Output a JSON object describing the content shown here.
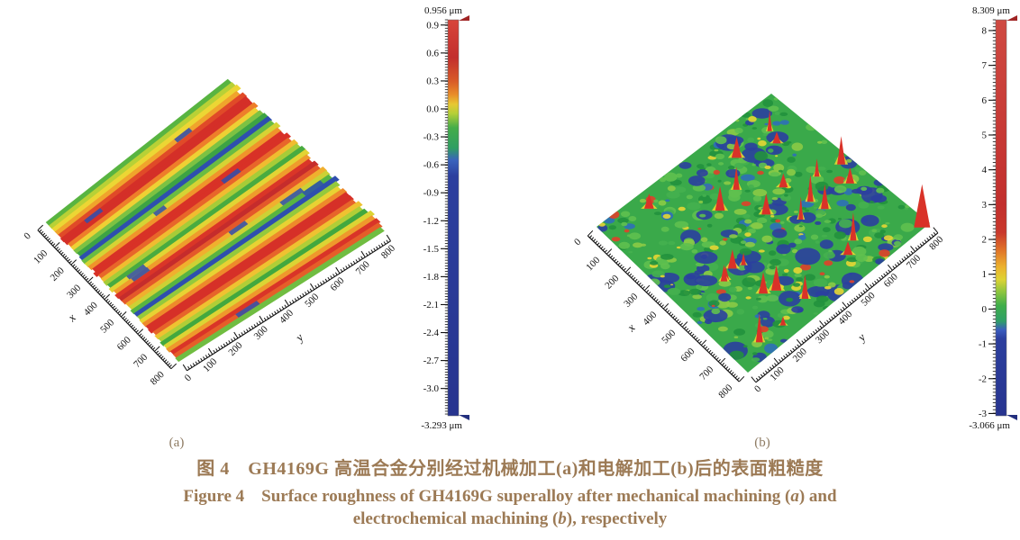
{
  "figure": {
    "panel_labels": {
      "a": "(a)",
      "b": "(b)"
    },
    "caption": {
      "zh": "图 4　GH4169G 高温合金分别经过机械加工(a)和电解加工(b)后的表面粗糙度",
      "en_line1_pre": "Figure 4　Surface roughness of GH4169G superalloy after mechanical machining (",
      "en_line1_italic": "a",
      "en_line1_post": ") and",
      "en_line2_pre": "electrochemical machining (",
      "en_line2_italic": "b",
      "en_line2_post": "), respectively",
      "text_color": "#9c7a55",
      "panel_label_color": "#8e7b63"
    }
  },
  "chart_data": [
    {
      "id": "a",
      "type": "heatmap",
      "subtype": "3d-surface-topography",
      "process": "mechanical machining",
      "xlabel": "x",
      "ylabel": "y",
      "x_ticks": [
        0,
        100,
        200,
        300,
        400,
        500,
        600,
        700,
        800
      ],
      "y_ticks": [
        0,
        100,
        200,
        300,
        400,
        500,
        600,
        700,
        800
      ],
      "axis_max": 800,
      "z_unit": "μm",
      "z_max": 0.956,
      "z_min": -3.293,
      "z_max_label": "0.956 μm",
      "z_min_label": "-3.293 μm",
      "colorbar_major_ticks": [
        0.9,
        0.6,
        0.3,
        0.0,
        -0.3,
        -0.6,
        -0.9,
        -1.2,
        -1.5,
        -1.8,
        -2.1,
        -2.4,
        -2.7,
        -3.0
      ],
      "colorbar_tick_decimals": 1,
      "colorbar_minor_step": 0.03,
      "colorbar_gradient": [
        [
          0.956,
          "#d8453a"
        ],
        [
          0.55,
          "#c22f2d"
        ],
        [
          0.3,
          "#d85a28"
        ],
        [
          0.15,
          "#e98e29"
        ],
        [
          0.05,
          "#e7c832"
        ],
        [
          -0.05,
          "#b5cf37"
        ],
        [
          -0.2,
          "#45ad49"
        ],
        [
          -0.42,
          "#2f9e62"
        ],
        [
          -0.55,
          "#3a63bd"
        ],
        [
          -0.72,
          "#2c3f9e"
        ],
        [
          -3.293,
          "#27348f"
        ]
      ],
      "texture": "parallel machining groove stripes running along y",
      "stripe_colors": [
        "#58b441",
        "#b8d136",
        "#ecd634",
        "#f0a42c",
        "#e04a28",
        "#d42f28",
        "#d42f28",
        "#ee7e2a",
        "#eed034",
        "#7cc243",
        "#3da344",
        "#2e4fae",
        "#6abc42",
        "#d6d334",
        "#f0942b",
        "#d83127",
        "#d83127",
        "#e8662a",
        "#f0bc30",
        "#a6cc38",
        "#48ab40",
        "#e2d434",
        "#ef9c2c",
        "#da3528",
        "#c52c2c",
        "#e4582a",
        "#f0b02e",
        "#ccd135",
        "#58b441",
        "#2e4fae",
        "#94c93c",
        "#e8d233",
        "#ee8a2b",
        "#d63028",
        "#d63028",
        "#e7642a",
        "#efc231",
        "#b0ce37",
        "#42a83f",
        "#dcd434",
        "#ef982c",
        "#d93428",
        "#e55e29",
        "#70bd41"
      ],
      "fleck_color": "#2e4fae",
      "fleck_count": 10,
      "rng_seed": 11
    },
    {
      "id": "b",
      "type": "heatmap",
      "subtype": "3d-surface-topography",
      "process": "electrochemical machining",
      "xlabel": "x",
      "ylabel": "y",
      "x_ticks": [
        0,
        100,
        200,
        300,
        400,
        500,
        600,
        700,
        800
      ],
      "y_ticks": [
        0,
        100,
        200,
        300,
        400,
        500,
        600,
        700,
        800
      ],
      "axis_max": 800,
      "z_unit": "μm",
      "z_max": 8.309,
      "z_min": -3.066,
      "z_max_label": "8.309 μm",
      "z_min_label": "-3.066 μm",
      "colorbar_major_ticks": [
        8,
        7,
        6,
        5,
        4,
        3,
        2,
        1,
        0,
        -1,
        -2,
        -3
      ],
      "colorbar_tick_decimals": 0,
      "colorbar_minor_step": 0.1,
      "colorbar_gradient": [
        [
          8.309,
          "#cf4a42"
        ],
        [
          3.0,
          "#c22f2d"
        ],
        [
          2.2,
          "#c9382c"
        ],
        [
          1.7,
          "#e07328"
        ],
        [
          1.2,
          "#ecb32e"
        ],
        [
          0.85,
          "#ded334"
        ],
        [
          0.5,
          "#8ec63e"
        ],
        [
          0.1,
          "#3fae4a"
        ],
        [
          -0.35,
          "#2f9e68"
        ],
        [
          -0.6,
          "#3a5cbe"
        ],
        [
          -0.85,
          "#2c3f9e"
        ],
        [
          -3.066,
          "#27348f"
        ]
      ],
      "texture": "mottled etched grains with pits and sharp peaks",
      "base_color": "#3aa94a",
      "blob_palette": [
        [
          "#2b3f9f",
          0.13
        ],
        [
          "#22913d",
          0.18
        ],
        [
          "#5fc04f",
          0.2
        ],
        [
          "#8bca46",
          0.12
        ],
        [
          "#e6d634",
          0.1
        ],
        [
          "#45b04f",
          0.15
        ],
        [
          "#e0402a",
          0.05
        ],
        [
          "#2f6fb8",
          0.07
        ]
      ],
      "blob_count": 520,
      "spike_count": 26,
      "spike_color": "#d93228",
      "spike_halo_color": "#e8d832",
      "corner_spike_height": 46,
      "rng_seed": 7
    }
  ]
}
